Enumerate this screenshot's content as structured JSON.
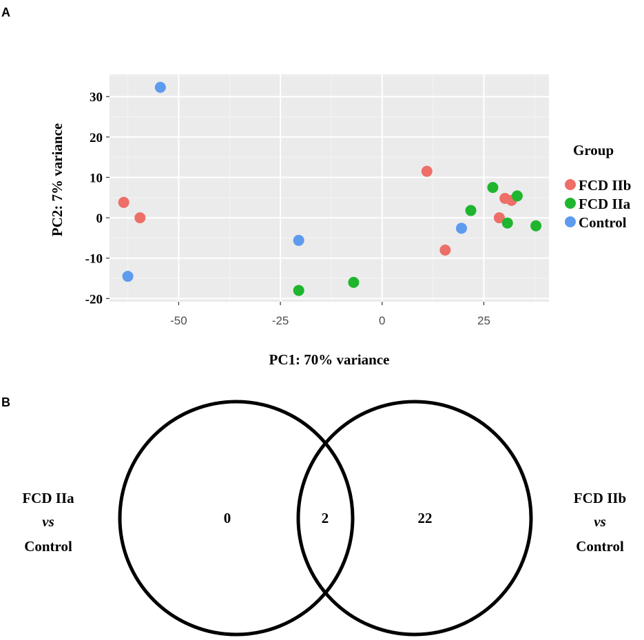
{
  "panel_a": {
    "label": "A"
  },
  "panel_b": {
    "label": "B"
  },
  "colors": {
    "FCD IIb": "#ed6f67",
    "FCD IIa": "#1fb52f",
    "Control": "#5d9bef",
    "panel_bg": "#ebebeb",
    "grid_major": "#ffffff",
    "grid_minor": "#f4f4f4"
  },
  "chart_data": [
    {
      "type": "scatter",
      "title": "",
      "xlabel": "PC1: 70% variance",
      "ylabel": "PC2: 7% variance",
      "xlim": [
        -67,
        41
      ],
      "ylim": [
        -20.8,
        35.5
      ],
      "x_ticks": [
        -50,
        -25,
        0,
        25
      ],
      "x_tick_labels": [
        "-50",
        "-25",
        "0",
        "25"
      ],
      "y_ticks": [
        -20,
        -10,
        0,
        10,
        20,
        30
      ],
      "y_tick_labels": [
        "-20",
        "-10",
        "0",
        "10",
        "20",
        "30"
      ],
      "grid": true,
      "legend": {
        "title": "Group",
        "placement": "right",
        "entries": [
          "FCD IIb",
          "FCD IIa",
          "Control"
        ]
      },
      "series": [
        {
          "name": "FCD IIb",
          "points": [
            [
              -63.5,
              3.8
            ],
            [
              -59.5,
              0.0
            ],
            [
              11.0,
              11.5
            ],
            [
              15.5,
              -8.0
            ],
            [
              28.8,
              0.0
            ],
            [
              30.2,
              4.8
            ],
            [
              31.8,
              4.3
            ]
          ]
        },
        {
          "name": "FCD IIa",
          "points": [
            [
              -20.5,
              -18.0
            ],
            [
              -7.0,
              -16.0
            ],
            [
              21.8,
              1.8
            ],
            [
              27.2,
              7.5
            ],
            [
              30.8,
              -1.3
            ],
            [
              33.2,
              5.4
            ],
            [
              37.8,
              -2.0
            ]
          ]
        },
        {
          "name": "Control",
          "points": [
            [
              -54.5,
              32.3
            ],
            [
              -20.5,
              -5.6
            ],
            [
              -62.5,
              -14.5
            ],
            [
              19.5,
              -2.6
            ]
          ]
        }
      ]
    },
    {
      "type": "venn",
      "sets": [
        {
          "name": "FCD IIa vs Control",
          "label_lines": [
            "FCD IIa",
            "vs",
            "Control"
          ]
        },
        {
          "name": "FCD IIb vs Control",
          "label_lines": [
            "FCD IIb",
            "vs",
            "Control"
          ]
        }
      ],
      "regions": {
        "only_left": "0",
        "intersection": "2",
        "only_right": "22"
      }
    }
  ]
}
